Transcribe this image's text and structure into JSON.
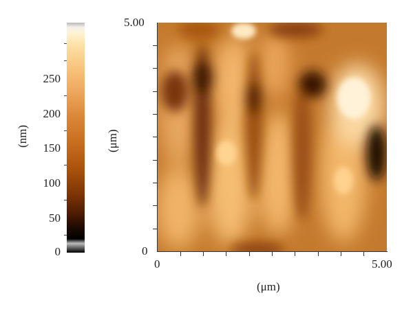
{
  "colorbar": {
    "unit_label": "(nm)",
    "ticks": [
      "250",
      "200",
      "150",
      "100",
      "50",
      "0"
    ]
  },
  "image": {
    "y_label": "(μm)",
    "x_label": "(μm)",
    "y_top": "5.00",
    "y_bottom": "0",
    "x_left": "0",
    "x_right": "5.00"
  }
}
